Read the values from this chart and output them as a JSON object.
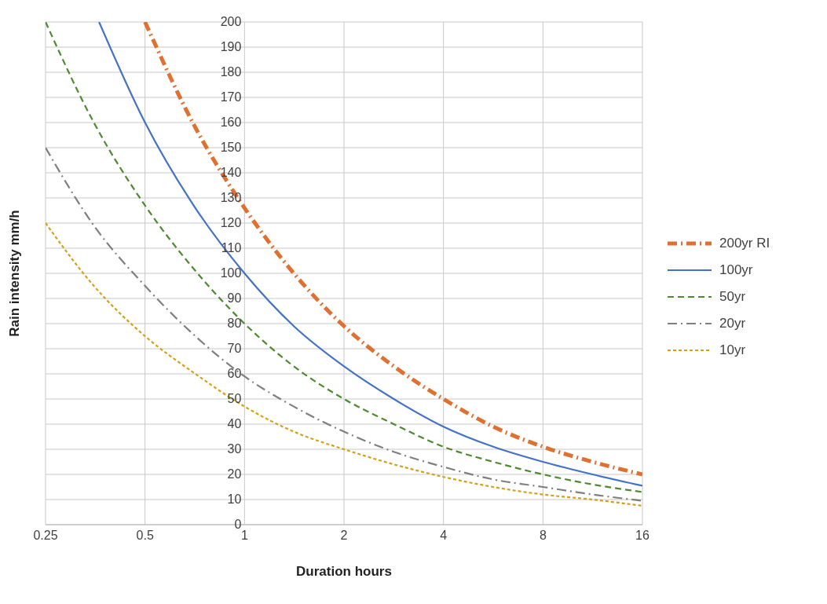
{
  "chart_data": {
    "type": "line",
    "xlabel": "Duration hours",
    "ylabel": "Rain intensity mm/h",
    "log": "x",
    "xlim": [
      0.25,
      16
    ],
    "xticks": [
      0.25,
      0.5,
      1,
      2,
      4,
      8,
      16
    ],
    "ylim": [
      0,
      200
    ],
    "yticks": [
      0,
      10,
      20,
      30,
      40,
      50,
      60,
      70,
      80,
      90,
      100,
      110,
      120,
      130,
      140,
      150,
      160,
      170,
      180,
      190,
      200
    ],
    "grid": true,
    "legend": "right",
    "marker": "none",
    "series": [
      {
        "name": "200yr RI",
        "color": "#e07030",
        "line_style": "dashdot",
        "x": [
          0.5,
          0.71,
          1,
          1.41,
          2,
          2.83,
          4,
          5.66,
          8,
          11.3,
          16
        ],
        "values": [
          200,
          158,
          126,
          100,
          79,
          63,
          50,
          39,
          31,
          25,
          20
        ]
      },
      {
        "name": "100yr",
        "color": "#4472c4",
        "line_style": "solid",
        "x": [
          0.363,
          0.5,
          0.71,
          1,
          1.41,
          2,
          2.83,
          4,
          5.66,
          8,
          11.3,
          16
        ],
        "values": [
          200,
          160,
          126,
          100,
          79,
          63,
          50,
          39,
          31,
          25,
          20,
          15.5
        ]
      },
      {
        "name": "50yr",
        "color": "#4e8a2e",
        "line_style": "dashed",
        "x": [
          0.25,
          0.35,
          0.5,
          0.71,
          1,
          1.41,
          2,
          2.83,
          4,
          5.66,
          8,
          11.3,
          16
        ],
        "values": [
          200,
          160,
          127,
          101,
          80,
          63,
          50,
          40,
          31,
          25,
          20,
          16,
          13
        ]
      },
      {
        "name": "20yr",
        "color": "#7f7f7f",
        "line_style": "dashdot",
        "x": [
          0.25,
          0.35,
          0.5,
          0.71,
          1,
          1.41,
          2,
          2.83,
          4,
          5.66,
          8,
          11.3,
          16
        ],
        "values": [
          150,
          119,
          95,
          75,
          59,
          47,
          37,
          29,
          23,
          18,
          15,
          12,
          9.5
        ]
      },
      {
        "name": "10yr",
        "color": "#d4a017",
        "line_style": "dotted",
        "x": [
          0.25,
          0.35,
          0.5,
          0.71,
          1,
          1.41,
          2,
          2.83,
          4,
          5.66,
          8,
          11.3,
          16
        ],
        "values": [
          120,
          95,
          75,
          60,
          47,
          37,
          30,
          24,
          19,
          15,
          12,
          10,
          7.5
        ]
      }
    ]
  }
}
